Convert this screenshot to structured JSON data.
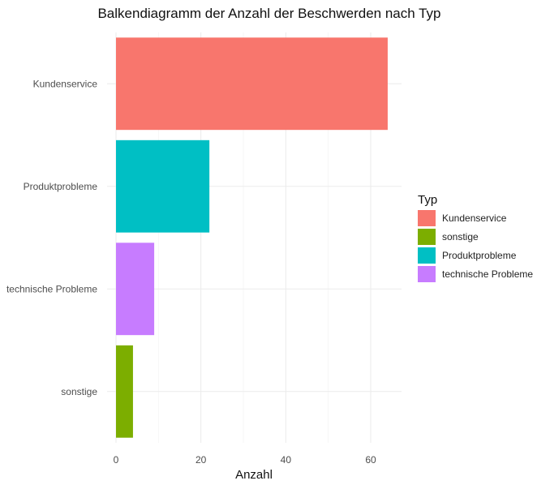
{
  "chart_data": {
    "type": "bar",
    "orientation": "horizontal",
    "title": "Balkendiagramm der Anzahl der Beschwerden nach Typ",
    "xlabel": "Anzahl",
    "ylabel": "",
    "categories": [
      "Kundenservice",
      "Produktprobleme",
      "technische Probleme",
      "sonstige"
    ],
    "values": [
      64,
      22,
      9,
      4
    ],
    "colors": [
      "#F8766D",
      "#00BFC4",
      "#C77CFF",
      "#7CAE00"
    ],
    "xlim": [
      0,
      67
    ],
    "xticks": [
      0,
      20,
      40,
      60
    ],
    "grid": true,
    "legend": {
      "title": "Typ",
      "position": "right",
      "entries": [
        {
          "label": "Kundenservice",
          "color": "#F8766D"
        },
        {
          "label": "sonstige",
          "color": "#7CAE00"
        },
        {
          "label": "Produktprobleme",
          "color": "#00BFC4"
        },
        {
          "label": "technische Probleme",
          "color": "#C77CFF"
        }
      ]
    }
  }
}
